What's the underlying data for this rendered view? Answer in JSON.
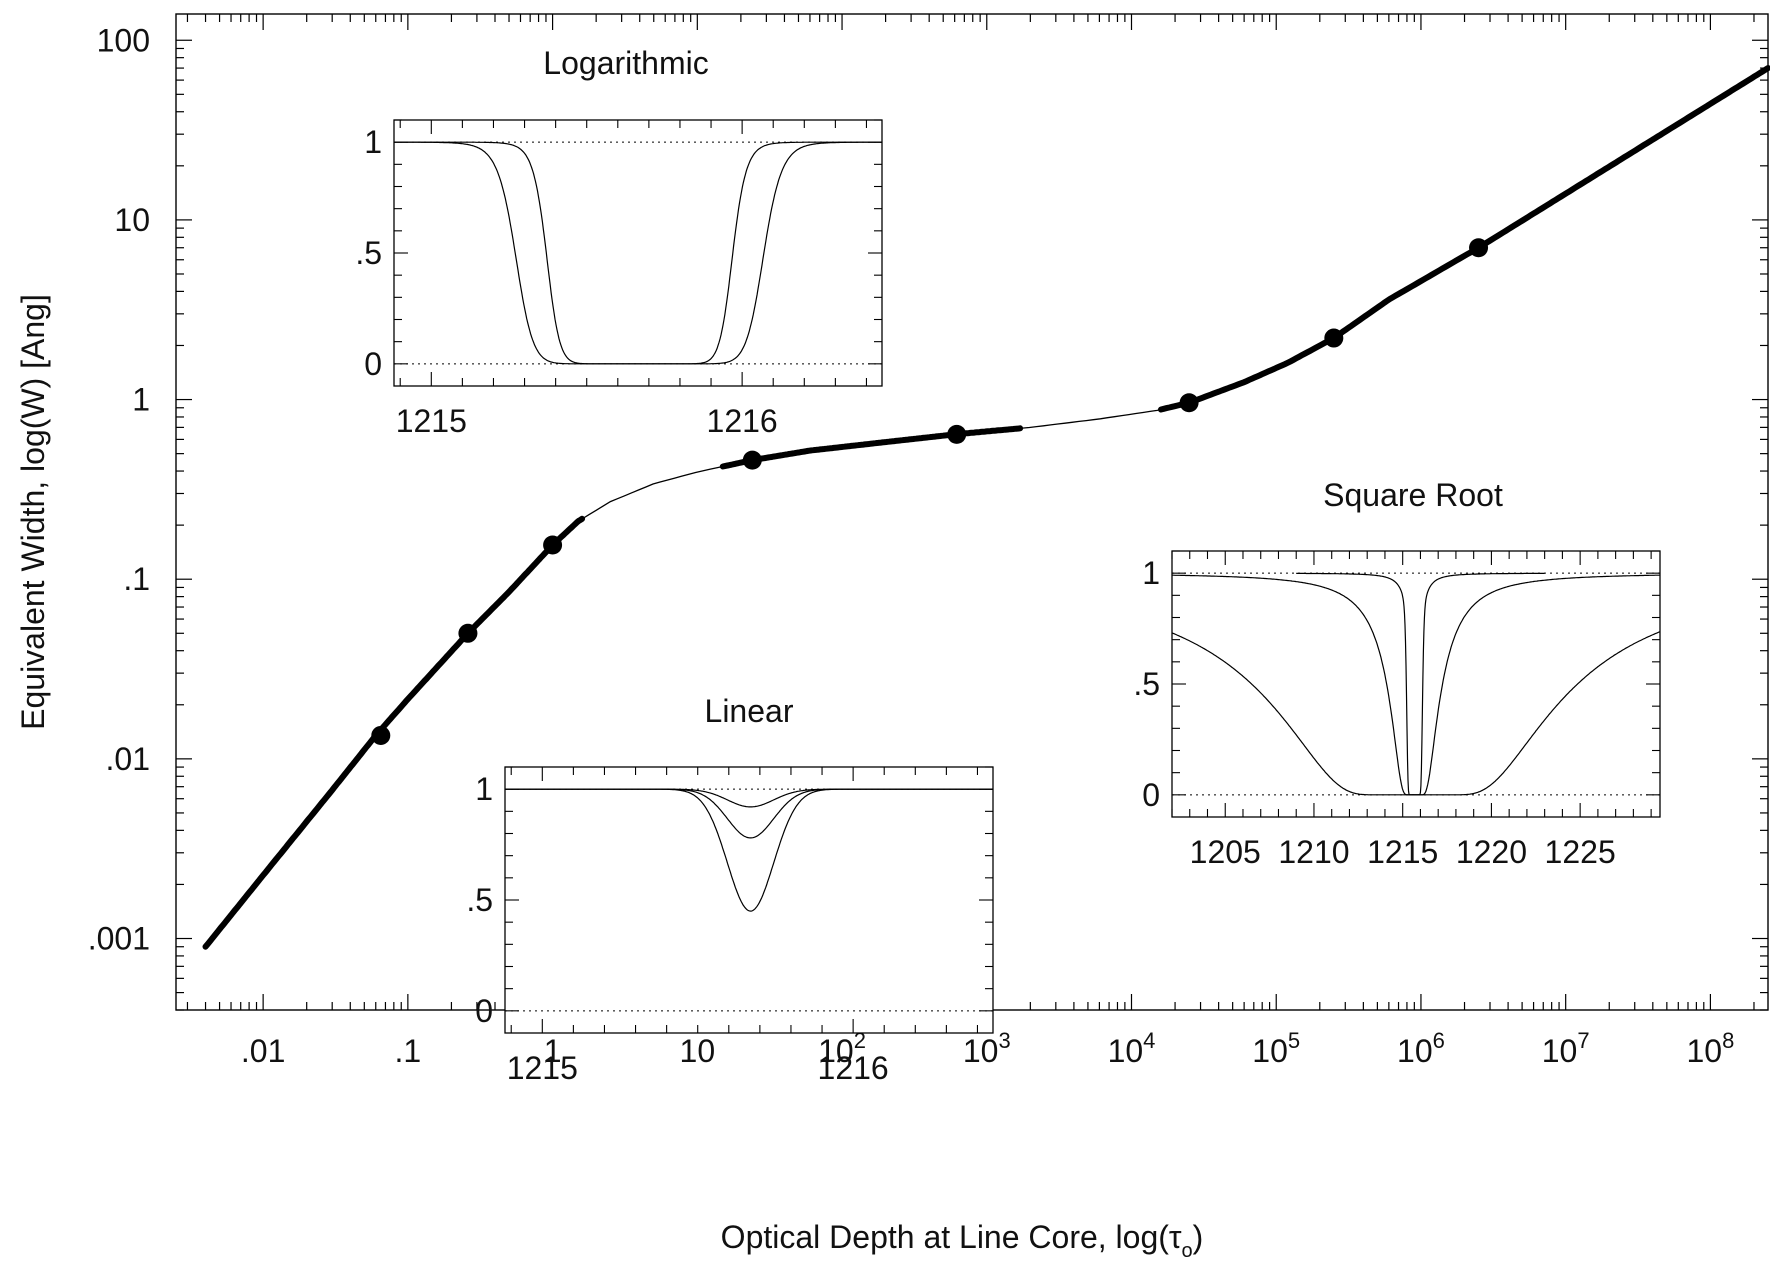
{
  "chart_data": [
    {
      "type": "line",
      "xlabel": "Optical Depth at Line Core, log(τ₀)",
      "xlabel_main": "Optical Depth at Line Core, log(τ",
      "xlabel_sub": "o",
      "xlabel_close": ")",
      "ylabel": "Equivalent Width, log(W) [Ang]",
      "xscale": "log",
      "yscale": "log",
      "xlim": [
        0.0025,
        250000000
      ],
      "ylim": [
        0.0004,
        140
      ],
      "x_ticks": [
        {
          "value": 0.01,
          "base": ".01",
          "exp": ""
        },
        {
          "value": 0.1,
          "base": ".1",
          "exp": ""
        },
        {
          "value": 1,
          "base": "1",
          "exp": ""
        },
        {
          "value": 10,
          "base": "10",
          "exp": ""
        },
        {
          "value": 100,
          "base": "10",
          "exp": "2"
        },
        {
          "value": 1000,
          "base": "10",
          "exp": "3"
        },
        {
          "value": 10000,
          "base": "10",
          "exp": "4"
        },
        {
          "value": 100000,
          "base": "10",
          "exp": "5"
        },
        {
          "value": 1000000,
          "base": "10",
          "exp": "6"
        },
        {
          "value": 10000000,
          "base": "10",
          "exp": "7"
        },
        {
          "value": 100000000,
          "base": "10",
          "exp": "8"
        }
      ],
      "y_ticks": [
        {
          "value": 0.001,
          "label": ".001"
        },
        {
          "value": 0.01,
          "label": ".01"
        },
        {
          "value": 0.1,
          "label": ".1"
        },
        {
          "value": 1,
          "label": "1"
        },
        {
          "value": 10,
          "label": "10"
        },
        {
          "value": 100,
          "label": "100"
        }
      ],
      "series": [
        {
          "curve_of_growth": [
            [
              0.004,
              0.0009
            ],
            [
              0.01,
              0.00225
            ],
            [
              0.03,
              0.0067
            ],
            [
              0.06,
              0.0135
            ],
            [
              0.1,
              0.0215
            ],
            [
              0.26,
              0.05
            ],
            [
              0.5,
              0.085
            ],
            [
              1.0,
              0.155
            ],
            [
              1.5,
              0.21
            ],
            [
              2.5,
              0.27
            ],
            [
              5,
              0.34
            ],
            [
              10,
              0.395
            ],
            [
              24,
              0.46
            ],
            [
              60,
              0.52
            ],
            [
              200,
              0.58
            ],
            [
              600,
              0.64
            ],
            [
              2000,
              0.7
            ],
            [
              6000,
              0.78
            ],
            [
              15000,
              0.87
            ],
            [
              25000,
              0.96
            ],
            [
              60000,
              1.25
            ],
            [
              120000,
              1.6
            ],
            [
              250000,
              2.2
            ],
            [
              600000,
              3.6
            ],
            [
              2500000,
              7.0
            ],
            [
              10000000,
              14.0
            ],
            [
              40000000,
              28.0
            ],
            [
              250000000,
              70.0
            ]
          ],
          "thick_segments": [
            [
              0.004,
              1.6
            ],
            [
              15,
              1700
            ],
            [
              16000,
              250000000
            ]
          ],
          "points": [
            [
              0.065,
              0.0135
            ],
            [
              0.26,
              0.05
            ],
            [
              1.0,
              0.155
            ],
            [
              24,
              0.46
            ],
            [
              620,
              0.64
            ],
            [
              25000,
              0.96
            ],
            [
              250000,
              2.2
            ],
            [
              2500000,
              7.0
            ]
          ]
        }
      ]
    },
    {
      "type": "line",
      "title": "Logarithmic",
      "xlim": [
        1214.88,
        1216.45
      ],
      "ylim": [
        -0.1,
        1.1
      ],
      "x_ticks": [
        {
          "value": 1215,
          "label": "1215"
        },
        {
          "value": 1216,
          "label": "1216"
        }
      ],
      "y_ticks": [
        {
          "value": 1,
          "label": "1"
        },
        {
          "value": 0.5,
          "label": ".5"
        },
        {
          "value": 0,
          "label": "0"
        }
      ],
      "series": [
        {
          "center": 1215.67,
          "depth": 1.0,
          "half_width": 0.3,
          "sharpness": 14
        },
        {
          "center": 1215.67,
          "depth": 1.0,
          "half_width": 0.4,
          "sharpness": 14
        }
      ]
    },
    {
      "type": "line",
      "title": "Linear",
      "xlim": [
        1214.88,
        1216.45
      ],
      "ylim": [
        -0.1,
        1.1
      ],
      "x_ticks": [
        {
          "value": 1215,
          "label": "1215"
        },
        {
          "value": 1216,
          "label": "1216"
        }
      ],
      "y_ticks": [
        {
          "value": 1,
          "label": "1"
        },
        {
          "value": 0.5,
          "label": ".5"
        },
        {
          "value": 0,
          "label": "0"
        }
      ],
      "series": [
        {
          "center": 1215.67,
          "depth": 0.08,
          "sigma": 0.105
        },
        {
          "center": 1215.67,
          "depth": 0.22,
          "sigma": 0.105
        },
        {
          "center": 1215.67,
          "depth": 0.55,
          "sigma": 0.105
        }
      ]
    },
    {
      "type": "line",
      "title": "Square Root",
      "xlim": [
        1202.0,
        1229.5
      ],
      "ylim": [
        -0.1,
        1.1
      ],
      "x_ticks": [
        {
          "value": 1205,
          "label": "1205"
        },
        {
          "value": 1210,
          "label": "1210"
        },
        {
          "value": 1215,
          "label": "1215"
        },
        {
          "value": 1220,
          "label": "1220"
        },
        {
          "value": 1225,
          "label": "1225"
        }
      ],
      "y_ticks": [
        {
          "value": 1,
          "label": "1"
        },
        {
          "value": 0.5,
          "label": ".5"
        },
        {
          "value": 0,
          "label": "0"
        }
      ],
      "series": [
        {
          "center": 1215.67,
          "tau": 40,
          "gamma": 0.02,
          "x_range": [
            1209,
            1223
          ]
        },
        {
          "center": 1215.67,
          "tau": 40,
          "gamma": 0.12,
          "x_range": [
            1202,
            1229.5
          ]
        },
        {
          "center": 1215.67,
          "tau": 40,
          "gamma": 0.7,
          "x_range": [
            1202,
            1229.5
          ]
        }
      ]
    }
  ]
}
